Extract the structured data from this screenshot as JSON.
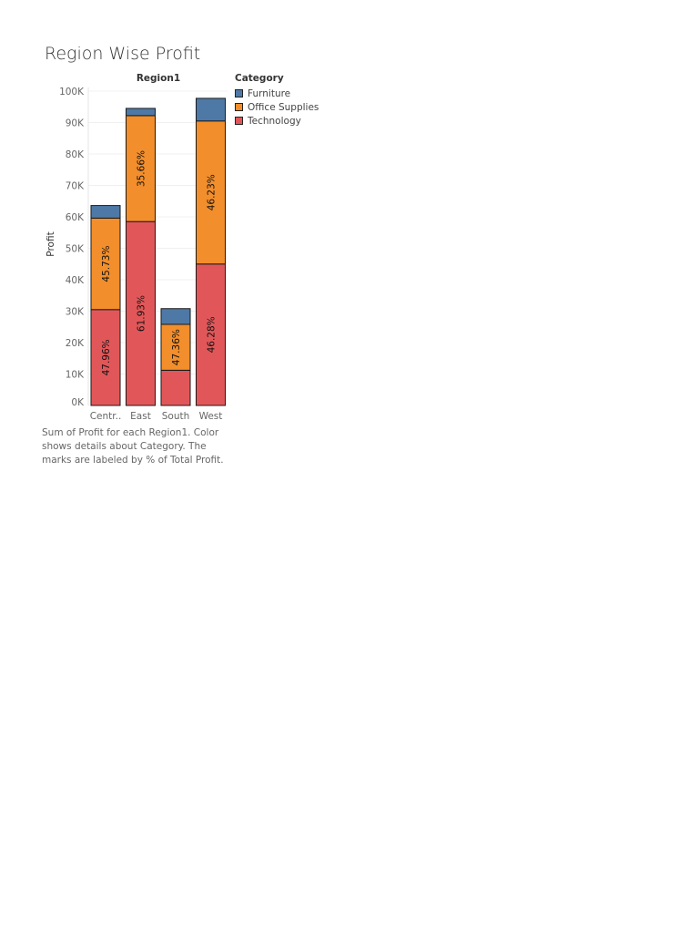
{
  "page": {
    "title": "Region Wise Profit"
  },
  "caption": "Sum of Profit for each Region1.  Color shows details about Category.  The marks are labeled by % of Total Profit.",
  "legend": {
    "title": "Category",
    "items": [
      {
        "label": "Furniture",
        "color": "#4e79a7"
      },
      {
        "label": "Office Supplies",
        "color": "#f28e2b"
      },
      {
        "label": "Technology",
        "color": "#e15759"
      }
    ]
  },
  "chart_data": {
    "type": "bar",
    "stacked": true,
    "column_header": "Region1",
    "ylabel": "Profit",
    "ylim": [
      0,
      100000
    ],
    "yticks": [
      0,
      10000,
      20000,
      30000,
      40000,
      50000,
      60000,
      70000,
      80000,
      90000,
      100000
    ],
    "ytick_labels": [
      "0K",
      "10K",
      "20K",
      "30K",
      "40K",
      "50K",
      "60K",
      "70K",
      "80K",
      "90K",
      "100K"
    ],
    "categories": [
      "Centr..",
      "East",
      "South",
      "West"
    ],
    "series": [
      {
        "name": "Technology",
        "color": "#e15759",
        "values": [
          30500,
          58500,
          11200,
          45000
        ],
        "labels": [
          "47.96%",
          "61.93%",
          "",
          "46.28%"
        ]
      },
      {
        "name": "Office Supplies",
        "color": "#f28e2b",
        "values": [
          29100,
          33700,
          14600,
          45500
        ],
        "labels": [
          "45.73%",
          "35.66%",
          "47.36%",
          "46.23%"
        ]
      },
      {
        "name": "Furniture",
        "color": "#4e79a7",
        "values": [
          4000,
          2300,
          5000,
          7200
        ],
        "labels": [
          "",
          "",
          "",
          ""
        ]
      }
    ],
    "grid": true
  }
}
